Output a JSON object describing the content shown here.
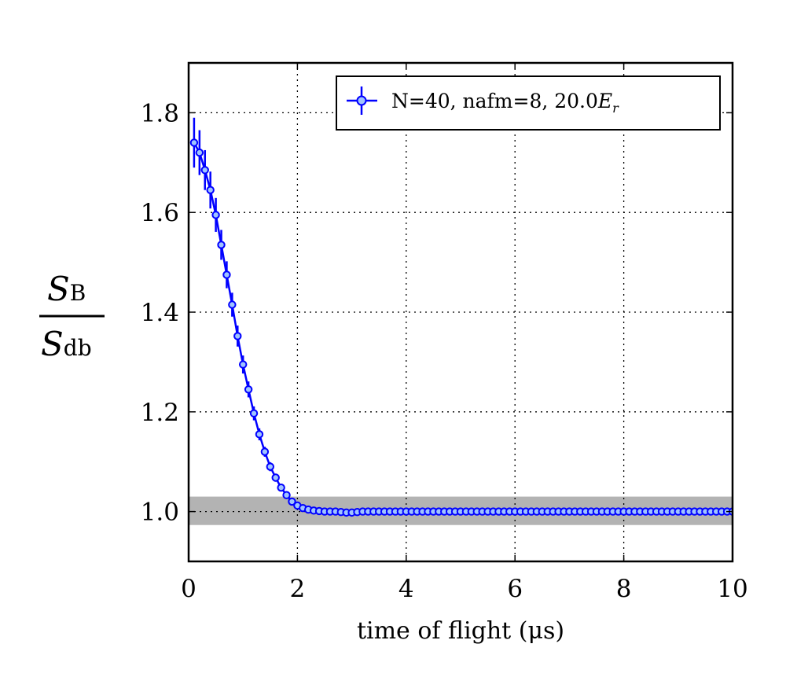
{
  "chart_data": {
    "type": "line",
    "title": "",
    "xlabel": "time of flight (μs)",
    "ylabel": {
      "numerator_main": "S",
      "numerator_sub": "B",
      "denominator_main": "S",
      "denominator_sub": "db"
    },
    "xlim": [
      0,
      10
    ],
    "ylim": [
      0.9,
      1.9
    ],
    "xticks": [
      "0",
      "2",
      "4",
      "6",
      "8",
      "10"
    ],
    "yticks": [
      "1.0",
      "1.2",
      "1.4",
      "1.6",
      "1.8"
    ],
    "grid": true,
    "legend_placement": "top-right",
    "reference_band": {
      "center": 1.0,
      "low": 0.973,
      "high": 1.03,
      "color": "#b3b3b3"
    },
    "series": [
      {
        "name": "N=40, nafm=8, 20.0",
        "name_math": "E",
        "name_math_sub": "r",
        "color": "#0000ff",
        "marker_fill": "#a0c4ff",
        "x": [
          0.1,
          0.2,
          0.3,
          0.4,
          0.5,
          0.6,
          0.7,
          0.8,
          0.9,
          1.0,
          1.1,
          1.2,
          1.3,
          1.4,
          1.5,
          1.6,
          1.7,
          1.8,
          1.9,
          2.0,
          2.1,
          2.2,
          2.3,
          2.4,
          2.5,
          2.6,
          2.7,
          2.8,
          2.9,
          3.0,
          3.1,
          3.2,
          3.3,
          3.4,
          3.5,
          3.6,
          3.7,
          3.8,
          3.9,
          4.0,
          4.1,
          4.2,
          4.3,
          4.4,
          4.5,
          4.6,
          4.7,
          4.8,
          4.9,
          5.0,
          5.1,
          5.2,
          5.3,
          5.4,
          5.5,
          5.6,
          5.7,
          5.8,
          5.9,
          6.0,
          6.1,
          6.2,
          6.3,
          6.4,
          6.5,
          6.6,
          6.7,
          6.8,
          6.9,
          7.0,
          7.1,
          7.2,
          7.3,
          7.4,
          7.5,
          7.6,
          7.7,
          7.8,
          7.9,
          8.0,
          8.1,
          8.2,
          8.3,
          8.4,
          8.5,
          8.6,
          8.7,
          8.8,
          8.9,
          9.0,
          9.1,
          9.2,
          9.3,
          9.4,
          9.5,
          9.6,
          9.7,
          9.8,
          9.9,
          10.0
        ],
        "y": [
          1.74,
          1.72,
          1.685,
          1.645,
          1.595,
          1.535,
          1.475,
          1.415,
          1.352,
          1.295,
          1.245,
          1.197,
          1.155,
          1.12,
          1.09,
          1.068,
          1.048,
          1.033,
          1.02,
          1.012,
          1.007,
          1.004,
          1.002,
          1.001,
          1.0,
          1.0,
          1.0,
          0.999,
          0.998,
          0.998,
          0.999,
          1.0,
          1.0,
          1.0,
          1.0,
          1.0,
          1.0,
          1.0,
          1.0,
          1.0,
          1.0,
          1.0,
          1.0,
          1.0,
          1.0,
          1.0,
          1.0,
          1.0,
          1.0,
          1.0,
          1.0,
          1.0,
          1.0,
          1.0,
          1.0,
          1.0,
          1.0,
          1.0,
          1.0,
          1.0,
          1.0,
          1.0,
          1.0,
          1.0,
          1.0,
          1.0,
          1.0,
          1.0,
          1.0,
          1.0,
          1.0,
          1.0,
          1.0,
          1.0,
          1.0,
          1.0,
          1.0,
          1.0,
          1.0,
          1.0,
          1.0,
          1.0,
          1.0,
          1.0,
          1.0,
          1.0,
          1.0,
          1.0,
          1.0,
          1.0,
          1.0,
          1.0,
          1.0,
          1.0,
          1.0,
          1.0,
          1.0,
          1.0,
          1.0,
          1.0
        ],
        "yerr": [
          0.05,
          0.045,
          0.04,
          0.037,
          0.034,
          0.03,
          0.027,
          0.024,
          0.021,
          0.018,
          0.016,
          0.014,
          0.012,
          0.01,
          0.009,
          0.008,
          0.007,
          0.006,
          0.005,
          0.004,
          0.003,
          0.003,
          0.002,
          0.002,
          0.002,
          0.001,
          0.001,
          0.001,
          0.001,
          0.001,
          0.001,
          0.001,
          0.001,
          0.001,
          0.001,
          0.001,
          0.001,
          0.001,
          0.001,
          0.001,
          0.001,
          0.001,
          0.001,
          0.001,
          0.001,
          0.001,
          0.001,
          0.001,
          0.001,
          0.001,
          0.001,
          0.001,
          0.001,
          0.001,
          0.001,
          0.001,
          0.001,
          0.001,
          0.001,
          0.001,
          0.001,
          0.001,
          0.001,
          0.001,
          0.001,
          0.001,
          0.001,
          0.001,
          0.001,
          0.001,
          0.001,
          0.001,
          0.001,
          0.001,
          0.001,
          0.001,
          0.001,
          0.001,
          0.001,
          0.001,
          0.001,
          0.001,
          0.001,
          0.001,
          0.001,
          0.001,
          0.001,
          0.001,
          0.001,
          0.001,
          0.001,
          0.001,
          0.001,
          0.001,
          0.001,
          0.001,
          0.001,
          0.001,
          0.001,
          0.001
        ]
      }
    ]
  }
}
